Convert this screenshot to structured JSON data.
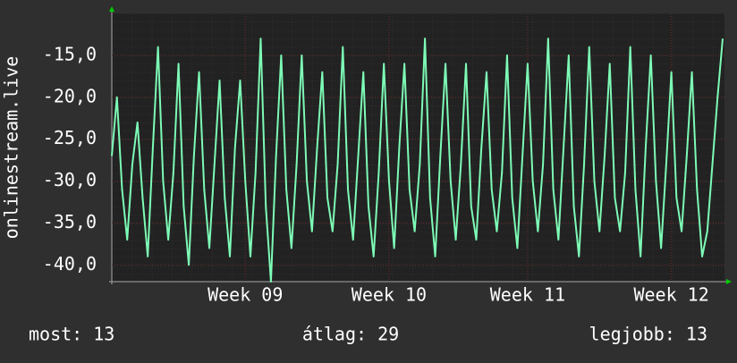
{
  "chart_data": {
    "type": "line",
    "y_label": "onlinestream.live",
    "footer": [
      "most: 13",
      "átlag: 29",
      "legjobb: 13"
    ],
    "ylim": [
      -42,
      -10
    ],
    "yticks": [
      {
        "value": -40,
        "label": "-40,0"
      },
      {
        "value": -35,
        "label": "-35,0"
      },
      {
        "value": -30,
        "label": "-30,0"
      },
      {
        "value": -25,
        "label": "-25,0"
      },
      {
        "value": -20,
        "label": "-20,0"
      },
      {
        "value": -15,
        "label": "-15,0"
      }
    ],
    "grid": true,
    "categories": [
      null,
      null,
      null,
      null,
      null,
      null,
      null,
      null,
      null,
      null,
      null,
      null,
      null,
      null,
      null,
      null,
      null,
      null,
      null,
      null,
      null,
      null,
      null,
      null,
      null,
      null,
      "Week 09",
      null,
      null,
      null,
      null,
      null,
      null,
      null,
      null,
      null,
      null,
      null,
      null,
      null,
      null,
      null,
      null,
      null,
      null,
      null,
      null,
      null,
      null,
      null,
      null,
      null,
      null,
      null,
      "Week 10",
      null,
      null,
      null,
      null,
      null,
      null,
      null,
      null,
      null,
      null,
      null,
      null,
      null,
      null,
      null,
      null,
      null,
      null,
      null,
      null,
      null,
      null,
      null,
      null,
      null,
      null,
      "Week 11",
      null,
      null,
      null,
      null,
      null,
      null,
      null,
      null,
      null,
      null,
      null,
      null,
      null,
      null,
      null,
      null,
      null,
      null,
      null,
      null,
      null,
      null,
      null,
      null,
      null,
      null,
      null,
      "Week 12",
      null,
      null,
      null,
      null,
      null,
      null,
      null,
      null,
      null,
      null
    ],
    "series": [
      {
        "color": "#7dfbb6",
        "values": [
          -27,
          -20,
          -31,
          -37,
          -28,
          -23,
          -32,
          -39,
          -26,
          -14,
          -30,
          -37,
          -29,
          -16,
          -33,
          -40,
          -27,
          -17,
          -31,
          -38,
          -28,
          -18,
          -32,
          -39,
          -26,
          -18,
          -30,
          -39,
          -29,
          -13,
          -33,
          -42,
          -27,
          -15,
          -31,
          -38,
          -28,
          -15,
          -30,
          -36,
          -26,
          -17,
          -32,
          -36,
          -28,
          -14,
          -31,
          -37,
          -27,
          -17,
          -33,
          -39,
          -29,
          -16,
          -30,
          -38,
          -26,
          -16,
          -31,
          -36,
          -28,
          -13,
          -32,
          -39,
          -27,
          -16,
          -30,
          -37,
          -28,
          -16,
          -33,
          -37,
          -26,
          -17,
          -31,
          -36,
          -29,
          -15,
          -32,
          -38,
          -27,
          -16,
          -30,
          -36,
          -28,
          -13,
          -31,
          -37,
          -26,
          -15,
          -33,
          -39,
          -28,
          -14,
          -30,
          -36,
          -27,
          -16,
          -32,
          -36,
          -29,
          -14,
          -31,
          -39,
          -26,
          -15,
          -30,
          -38,
          -28,
          -17,
          -32,
          -36,
          -27,
          -17,
          -31,
          -39,
          -36,
          -28,
          -20,
          -13
        ]
      }
    ]
  }
}
